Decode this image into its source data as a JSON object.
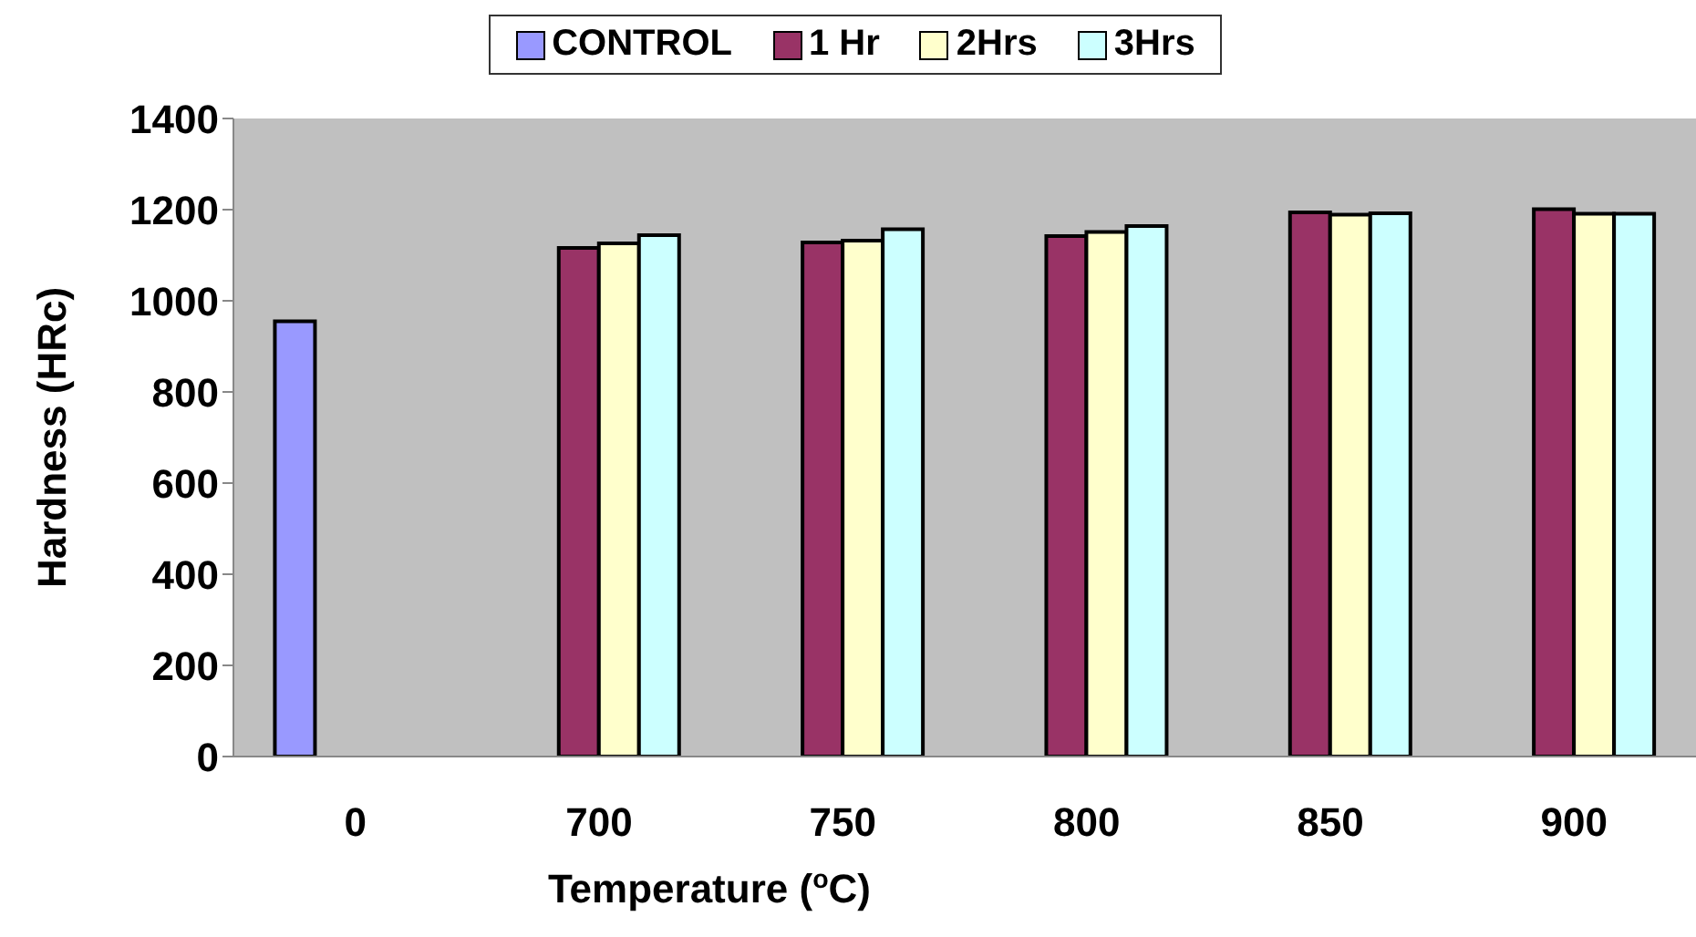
{
  "chart_data": {
    "type": "bar",
    "xlabel": "Temperature ($^{o}$C)",
    "ylabel": "Hardness  (HRc)",
    "categories": [
      "0",
      "700",
      "750",
      "800",
      "850",
      "900"
    ],
    "series": [
      {
        "name": "CONTROL",
        "color": "#9999ff",
        "values": [
          955,
          null,
          null,
          null,
          null,
          null
        ]
      },
      {
        "name": "1 Hr",
        "color": "#993366",
        "values": [
          null,
          1116,
          1128,
          1142,
          1194,
          1201
        ]
      },
      {
        "name": "2Hrs",
        "color": "#ffffcc",
        "values": [
          null,
          1126,
          1132,
          1151,
          1189,
          1191
        ]
      },
      {
        "name": "3Hrs",
        "color": "#ccffff",
        "values": [
          null,
          1144,
          1157,
          1164,
          1192,
          1191
        ]
      }
    ],
    "ylim": [
      0,
      1400
    ],
    "yticks": [
      0,
      200,
      400,
      600,
      800,
      1000,
      1200,
      1400
    ],
    "grid": false,
    "legend": "top"
  }
}
